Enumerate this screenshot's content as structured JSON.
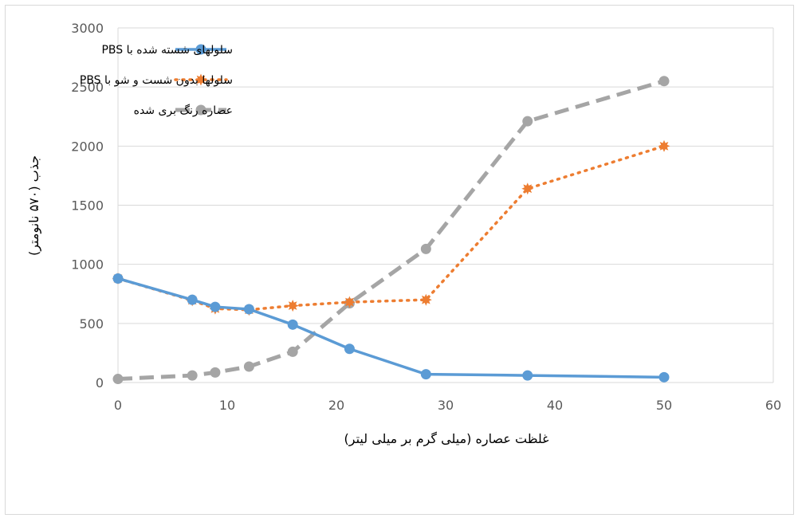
{
  "chart_data": {
    "type": "line",
    "xlabel": "غلظت عصاره (میلی گرم بر میلی لیتر)",
    "ylabel": "جذب (۵۷۰ نانومتر)",
    "xlim": [
      0,
      60
    ],
    "ylim": [
      0,
      3000
    ],
    "xticks": [
      0,
      10,
      20,
      30,
      40,
      50,
      60
    ],
    "yticks": [
      0,
      500,
      1000,
      1500,
      2000,
      2500,
      3000
    ],
    "grid": "horizontal",
    "legend_position": "top-left",
    "series": [
      {
        "name": "سلولهای شسته شده با PBS",
        "color": "#5b9bd5",
        "style": "solid",
        "marker": "circle",
        "x": [
          0,
          6.8,
          8.9,
          12,
          16,
          21.2,
          28.2,
          37.5,
          50
        ],
        "y": [
          880,
          700,
          640,
          620,
          490,
          285,
          70,
          60,
          45
        ]
      },
      {
        "name": "سلولها بدون شست و شو با PBS",
        "color": "#ed7d31",
        "style": "dotted",
        "marker": "star",
        "x": [
          0,
          6.8,
          8.9,
          12,
          16,
          21.2,
          28.2,
          37.5,
          50
        ],
        "y": [
          880,
          695,
          625,
          615,
          650,
          680,
          700,
          1640,
          2000
        ]
      },
      {
        "name": "عصاره رنگ بری شده",
        "color": "#a5a5a5",
        "style": "dashed",
        "marker": "circle",
        "x": [
          0,
          6.8,
          8.9,
          12,
          16,
          21.2,
          28.2,
          37.5,
          50
        ],
        "y": [
          30,
          60,
          85,
          135,
          260,
          670,
          1130,
          2210,
          2550
        ]
      }
    ]
  }
}
